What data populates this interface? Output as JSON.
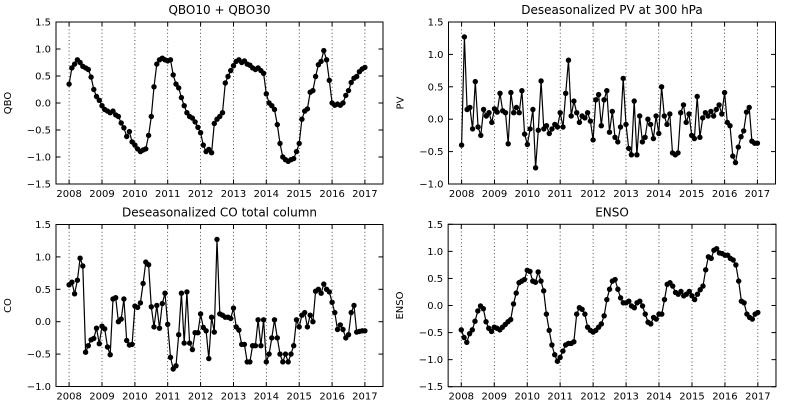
{
  "figure": {
    "background": "#ffffff",
    "accent_color": "#000000",
    "marker_style": "filled-circle",
    "grid_style": "dotted-vertical-year-lines"
  },
  "chart_data": [
    {
      "type": "line",
      "title": "QBO10 + QBO30",
      "ylabel": "QBO",
      "xlabel": "",
      "ylim": [
        -1.5,
        1.5
      ],
      "ytick_step": 0.5,
      "xlim": [
        2007.6,
        2017.55
      ],
      "x_ticks": [
        2008,
        2009,
        2010,
        2011,
        2012,
        2013,
        2014,
        2015,
        2016,
        2017
      ],
      "start_year": 2008,
      "x_step_months": 1,
      "values": [
        0.35,
        0.65,
        0.72,
        0.8,
        0.75,
        0.68,
        0.65,
        0.62,
        0.48,
        0.25,
        0.12,
        0.05,
        -0.05,
        -0.12,
        -0.15,
        -0.18,
        -0.15,
        -0.22,
        -0.25,
        -0.37,
        -0.46,
        -0.62,
        -0.53,
        -0.72,
        -0.78,
        -0.85,
        -0.9,
        -0.87,
        -0.85,
        -0.6,
        -0.25,
        0.3,
        0.72,
        0.8,
        0.83,
        0.8,
        0.78,
        0.8,
        0.52,
        0.35,
        0.28,
        0.1,
        -0.05,
        -0.18,
        -0.25,
        -0.28,
        -0.35,
        -0.45,
        -0.55,
        -0.78,
        -0.9,
        -0.86,
        -0.92,
        -0.38,
        -0.3,
        -0.25,
        -0.18,
        0.37,
        0.49,
        0.6,
        0.69,
        0.77,
        0.8,
        0.75,
        0.78,
        0.72,
        0.7,
        0.65,
        0.62,
        0.65,
        0.6,
        0.55,
        0.17,
        0.0,
        -0.05,
        -0.12,
        -0.4,
        -0.75,
        -1.0,
        -1.05,
        -1.08,
        -1.05,
        -1.03,
        -0.9,
        -0.75,
        -0.3,
        -0.15,
        -0.11,
        0.2,
        0.23,
        0.49,
        0.71,
        0.77,
        0.97,
        0.8,
        0.42,
        0.0,
        -0.04,
        -0.02,
        -0.04,
        0.0,
        0.14,
        0.23,
        0.38,
        0.46,
        0.49,
        0.58,
        0.63,
        0.66
      ]
    },
    {
      "type": "line",
      "title": "Deseasonalized PV at 300 hPa",
      "ylabel": "PV",
      "xlabel": "",
      "ylim": [
        -1.0,
        1.5
      ],
      "ytick_step": 0.5,
      "xlim": [
        2007.6,
        2017.55
      ],
      "x_ticks": [
        2008,
        2009,
        2010,
        2011,
        2012,
        2013,
        2014,
        2015,
        2016,
        2017
      ],
      "start_year": 2008,
      "x_step_months": 1,
      "values": [
        -0.4,
        1.27,
        0.15,
        0.18,
        -0.15,
        0.58,
        -0.12,
        -0.25,
        0.15,
        0.05,
        0.1,
        -0.05,
        0.16,
        0.11,
        0.4,
        0.13,
        0.1,
        -0.38,
        0.41,
        0.1,
        0.18,
        0.1,
        0.44,
        -0.23,
        -0.39,
        -0.15,
        0.15,
        -0.75,
        -0.17,
        0.59,
        -0.15,
        -0.1,
        -0.22,
        -0.15,
        -0.08,
        -0.12,
        0.1,
        -0.12,
        0.4,
        0.91,
        0.05,
        0.28,
        0.1,
        -0.05,
        0.05,
        0.02,
        0.1,
        -0.03,
        -0.32,
        0.3,
        0.38,
        -0.1,
        0.3,
        0.44,
        -0.2,
        0.12,
        -0.28,
        -0.35,
        -0.12,
        0.63,
        -0.08,
        -0.45,
        -0.55,
        0.28,
        -0.55,
        0.05,
        -0.35,
        -0.28,
        0.0,
        -0.08,
        -0.3,
        0.05,
        -0.22,
        0.5,
        0.05,
        -0.08,
        0.08,
        -0.52,
        -0.55,
        -0.52,
        0.1,
        0.22,
        -0.05,
        0.08,
        -0.25,
        -0.3,
        0.35,
        -0.28,
        0.02,
        0.1,
        0.05,
        0.12,
        0.05,
        0.15,
        0.22,
        0.08,
        0.41,
        -0.05,
        -0.1,
        -0.57,
        -0.67,
        -0.43,
        -0.27,
        -0.18,
        0.11,
        0.18,
        -0.34,
        -0.37,
        -0.37
      ]
    },
    {
      "type": "line",
      "title": "Deseasonalized CO total column",
      "ylabel": "CO",
      "xlabel": "",
      "ylim": [
        -1.0,
        1.5
      ],
      "ytick_step": 0.5,
      "xlim": [
        2007.6,
        2017.55
      ],
      "x_ticks": [
        2008,
        2009,
        2010,
        2011,
        2012,
        2013,
        2014,
        2015,
        2016,
        2017
      ],
      "start_year": 2008,
      "x_step_months": 1,
      "values": [
        0.57,
        0.61,
        0.43,
        0.64,
        0.98,
        0.86,
        -0.47,
        -0.37,
        -0.28,
        -0.26,
        -0.1,
        -0.34,
        -0.07,
        -0.11,
        -0.39,
        -0.51,
        0.35,
        0.37,
        0.0,
        0.04,
        0.35,
        -0.29,
        -0.36,
        -0.35,
        0.24,
        0.22,
        0.29,
        0.59,
        0.92,
        0.88,
        0.23,
        -0.08,
        0.25,
        -0.1,
        0.28,
        0.44,
        -0.04,
        -0.55,
        -0.73,
        -0.68,
        -0.2,
        0.44,
        -0.33,
        0.46,
        -0.33,
        -0.43,
        -0.17,
        -0.17,
        0.12,
        -0.09,
        -0.14,
        -0.57,
        0.07,
        -0.16,
        1.27,
        0.12,
        0.1,
        0.07,
        0.07,
        0.05,
        0.21,
        -0.08,
        -0.13,
        -0.35,
        -0.35,
        -0.62,
        -0.62,
        -0.37,
        -0.37,
        0.03,
        -0.37,
        0.03,
        -0.62,
        -0.5,
        -0.25,
        0.03,
        -0.25,
        -0.5,
        -0.62,
        -0.5,
        -0.62,
        -0.5,
        -0.37,
        0.03,
        -0.08,
        0.1,
        0.14,
        -0.08,
        0.1,
        0.0,
        0.47,
        0.5,
        0.44,
        0.58,
        0.5,
        0.46,
        0.3,
        0.14,
        -0.12,
        -0.05,
        -0.12,
        -0.25,
        -0.2,
        0.14,
        0.25,
        -0.16,
        -0.15,
        -0.14,
        -0.14
      ]
    },
    {
      "type": "line",
      "title": "ENSO",
      "ylabel": "ENSO",
      "xlabel": "",
      "ylim": [
        -1.5,
        1.5
      ],
      "ytick_step": 0.5,
      "xlim": [
        2007.6,
        2017.55
      ],
      "x_ticks": [
        2008,
        2009,
        2010,
        2011,
        2012,
        2013,
        2014,
        2015,
        2016,
        2017
      ],
      "start_year": 2008,
      "x_step_months": 1,
      "values": [
        -0.45,
        -0.59,
        -0.68,
        -0.52,
        -0.45,
        -0.29,
        -0.1,
        -0.01,
        -0.06,
        -0.3,
        -0.42,
        -0.48,
        -0.4,
        -0.42,
        -0.45,
        -0.4,
        -0.35,
        -0.3,
        -0.26,
        0.03,
        0.23,
        0.42,
        0.45,
        0.48,
        0.65,
        0.63,
        0.45,
        0.43,
        0.62,
        0.45,
        0.27,
        -0.16,
        -0.46,
        -0.73,
        -0.91,
        -1.03,
        -0.96,
        -0.84,
        -0.73,
        -0.7,
        -0.7,
        -0.67,
        -0.16,
        -0.04,
        -0.07,
        -0.16,
        -0.4,
        -0.46,
        -0.49,
        -0.46,
        -0.4,
        -0.34,
        -0.19,
        0.11,
        0.3,
        0.45,
        0.48,
        0.3,
        0.14,
        0.05,
        0.05,
        0.08,
        -0.01,
        -0.04,
        0.05,
        0.08,
        -0.01,
        -0.16,
        -0.31,
        -0.34,
        -0.22,
        -0.25,
        -0.16,
        -0.16,
        0.11,
        0.39,
        0.42,
        0.36,
        0.24,
        0.21,
        0.26,
        0.18,
        0.21,
        0.26,
        0.18,
        0.11,
        0.21,
        0.29,
        0.36,
        0.66,
        0.9,
        0.87,
        1.02,
        1.05,
        0.97,
        0.96,
        0.93,
        0.93,
        0.87,
        0.84,
        0.75,
        0.45,
        0.08,
        0.05,
        -0.16,
        -0.22,
        -0.25,
        -0.16,
        -0.13
      ]
    }
  ]
}
